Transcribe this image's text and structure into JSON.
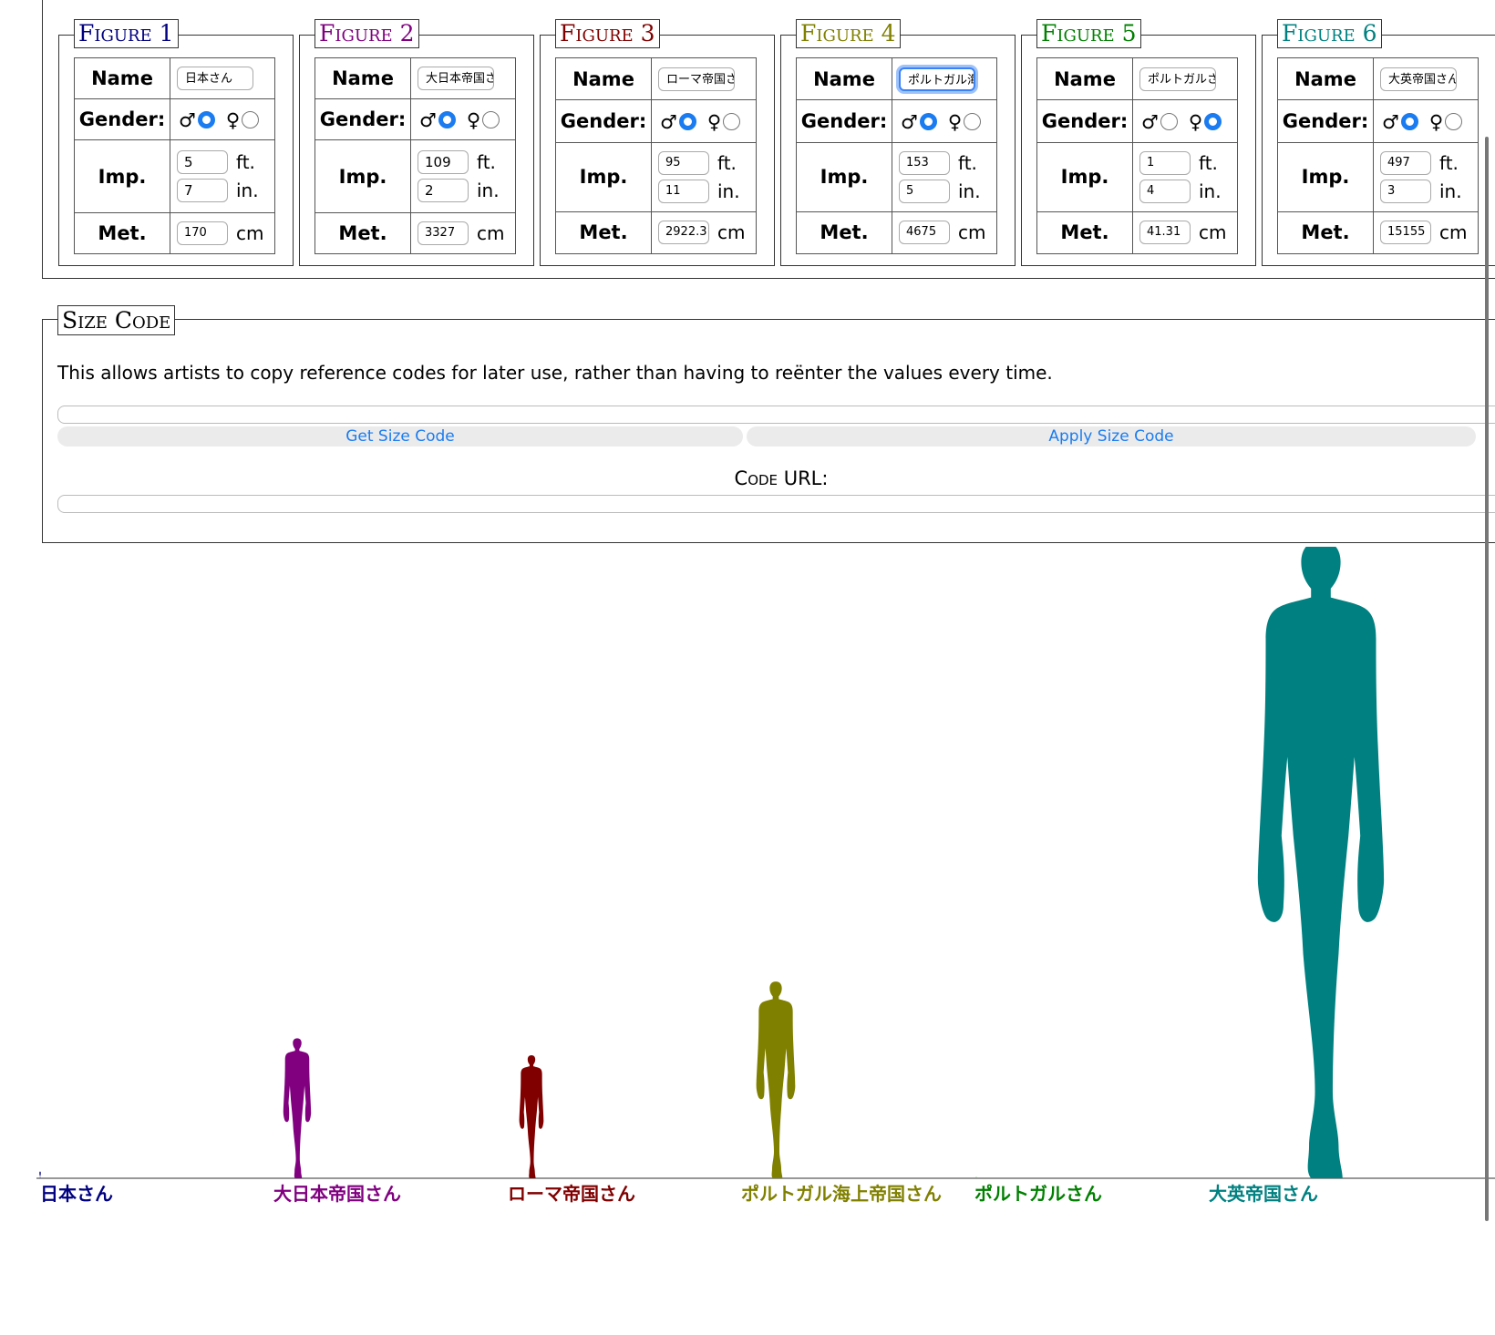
{
  "figures": [
    {
      "legend": "Figure 1",
      "color": "#000080",
      "name": "日本さん",
      "gender": "male",
      "ft": "5",
      "in": "7",
      "cm": "170",
      "height_cm": 170,
      "focused": false
    },
    {
      "legend": "Figure 2",
      "color": "#800080",
      "name": "大日本帝国さん",
      "gender": "male",
      "ft": "109",
      "in": "2",
      "cm": "3327",
      "height_cm": 3327,
      "focused": false
    },
    {
      "legend": "Figure 3",
      "color": "#800000",
      "name": "ローマ帝国さん",
      "gender": "male",
      "ft": "95",
      "in": "11",
      "cm": "2922.3",
      "height_cm": 2922.3,
      "focused": false
    },
    {
      "legend": "Figure 4",
      "color": "#808000",
      "name": "ポルトガル海上帝国さん",
      "gender": "male",
      "ft": "153",
      "in": "5",
      "cm": "4675",
      "height_cm": 4675,
      "focused": true
    },
    {
      "legend": "Figure 5",
      "color": "#008000",
      "name": "ポルトガルさん",
      "gender": "female",
      "ft": "1",
      "in": "4",
      "cm": "41.31",
      "height_cm": 41.31,
      "focused": false
    },
    {
      "legend": "Figure 6",
      "color": "#008080",
      "name": "大英帝国さん",
      "gender": "male",
      "ft": "497",
      "in": "3",
      "cm": "15155",
      "height_cm": 15155,
      "focused": false
    }
  ],
  "labels": {
    "name": "Name",
    "gender": "Gender:",
    "imp": "Imp.",
    "met": "Met.",
    "male_symbol": "♂",
    "female_symbol": "♀",
    "ft": "ft.",
    "in": "in.",
    "cm": "cm"
  },
  "size_code": {
    "legend": "Size Code",
    "description": "This allows artists to copy reference codes for later use, rather than having to reënter the values every time.",
    "code_value": "",
    "get_button": "Get Size Code",
    "apply_button": "Apply Size Code",
    "code_url_label": "Code URL:",
    "url_value": ""
  },
  "chart_data": {
    "type": "bar",
    "categories": [
      "日本さん",
      "大日本帝国さん",
      "ローマ帝国さん",
      "ポルトガル海上帝国さん",
      "ポルトガルさん",
      "大英帝国さん"
    ],
    "values": [
      170,
      3327,
      2922.3,
      4675,
      41.31,
      15155
    ],
    "colors": [
      "#000080",
      "#800080",
      "#800000",
      "#808000",
      "#008000",
      "#008080"
    ],
    "ylim": [
      0,
      15155
    ]
  }
}
